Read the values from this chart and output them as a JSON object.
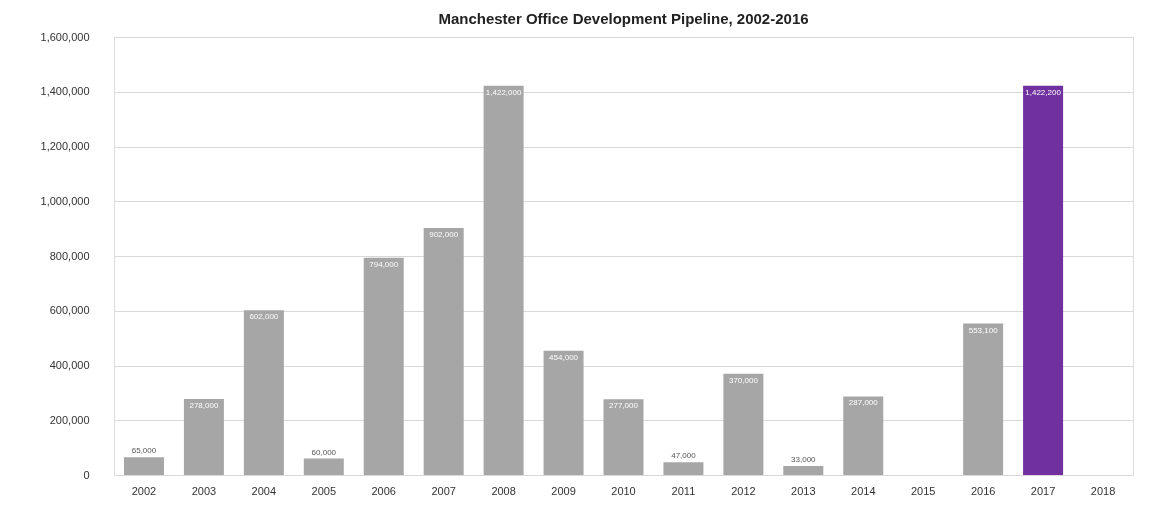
{
  "chart_data": {
    "type": "bar",
    "title": "Manchester Office Development Pipeline, 2002-2016",
    "categories": [
      "2002",
      "2003",
      "2004",
      "2005",
      "2006",
      "2007",
      "2008",
      "2009",
      "2010",
      "2011",
      "2012",
      "2013",
      "2014",
      "2015",
      "2016",
      "2017",
      "2018"
    ],
    "values": [
      65000,
      278000,
      602000,
      60000,
      794000,
      902000,
      1422000,
      454000,
      277000,
      47000,
      370000,
      33000,
      287000,
      null,
      553100,
      1422200,
      null
    ],
    "value_labels": [
      "65,000",
      "278,000",
      "602,000",
      "60,000",
      "794,000",
      "902,000",
      "1,422,000",
      "454,000",
      "277,000",
      "47,000",
      "370,000",
      "33,000",
      "287,000",
      null,
      "553,100",
      "1,422,200",
      null
    ],
    "colors": [
      "#a6a6a6",
      "#a6a6a6",
      "#a6a6a6",
      "#a6a6a6",
      "#a6a6a6",
      "#a6a6a6",
      "#a6a6a6",
      "#a6a6a6",
      "#a6a6a6",
      "#a6a6a6",
      "#a6a6a6",
      "#a6a6a6",
      "#a6a6a6",
      "#a6a6a6",
      "#a6a6a6",
      "#7030a0",
      "#a6a6a6"
    ],
    "ylim": [
      0,
      1600000
    ],
    "yticks": [
      {
        "value": 0,
        "label": "0"
      },
      {
        "value": 200000,
        "label": "200,000"
      },
      {
        "value": 400000,
        "label": "400,000"
      },
      {
        "value": 600000,
        "label": "600,000"
      },
      {
        "value": 800000,
        "label": "800,000"
      },
      {
        "value": 1000000,
        "label": "1,000,000"
      },
      {
        "value": 1200000,
        "label": "1,200,000"
      },
      {
        "value": 1400000,
        "label": "1,400,000"
      },
      {
        "value": 1600000,
        "label": "1,600,000"
      }
    ],
    "grid": "y"
  }
}
